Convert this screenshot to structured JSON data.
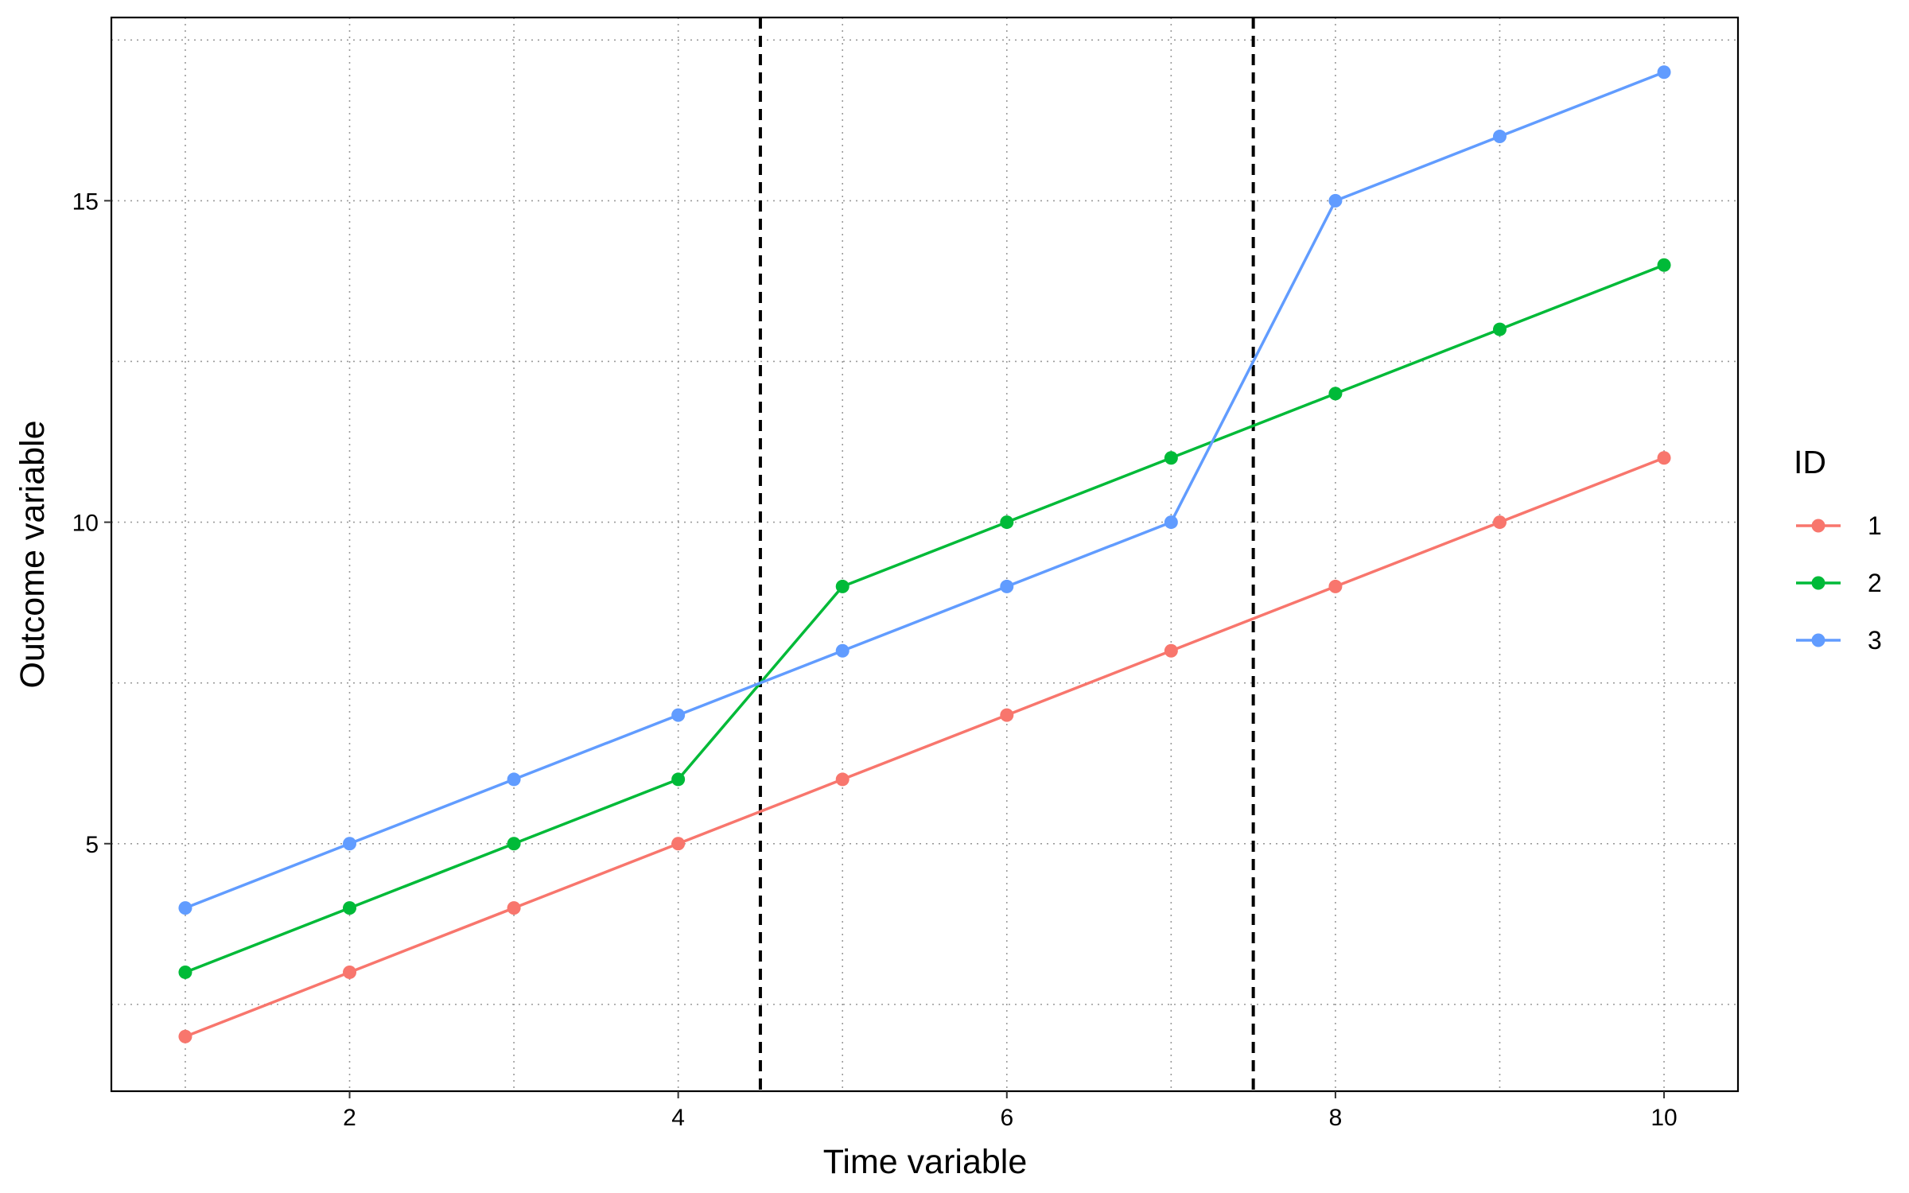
{
  "chart_data": {
    "type": "line",
    "title": "",
    "xlabel": "Time variable",
    "ylabel": "Outcome variable",
    "x": [
      1,
      2,
      3,
      4,
      5,
      6,
      7,
      8,
      9,
      10
    ],
    "xlim": [
      0.55,
      10.45
    ],
    "ylim": [
      1.15,
      17.85
    ],
    "x_ticks": [
      2,
      4,
      6,
      8,
      10
    ],
    "y_ticks": [
      5,
      10,
      15
    ],
    "x_minor_grid": [
      1,
      3,
      5,
      7,
      9
    ],
    "y_minor_grid": [
      2.5,
      7.5,
      12.5,
      17.5
    ],
    "grid": true,
    "grid_style": "dotted",
    "vlines": [
      4.5,
      7.5
    ],
    "vline_style": "dashed",
    "legend": {
      "title": "ID",
      "placement": "right"
    },
    "series": [
      {
        "name": "1",
        "color": "#F8766D",
        "values": [
          2,
          3,
          4,
          5,
          6,
          7,
          8,
          9,
          10,
          11
        ]
      },
      {
        "name": "2",
        "color": "#00BA38",
        "values": [
          3,
          4,
          5,
          6,
          9,
          10,
          11,
          12,
          13,
          14
        ]
      },
      {
        "name": "3",
        "color": "#619CFF",
        "values": [
          4,
          5,
          6,
          7,
          8,
          9,
          10,
          15,
          16,
          17
        ]
      }
    ]
  }
}
